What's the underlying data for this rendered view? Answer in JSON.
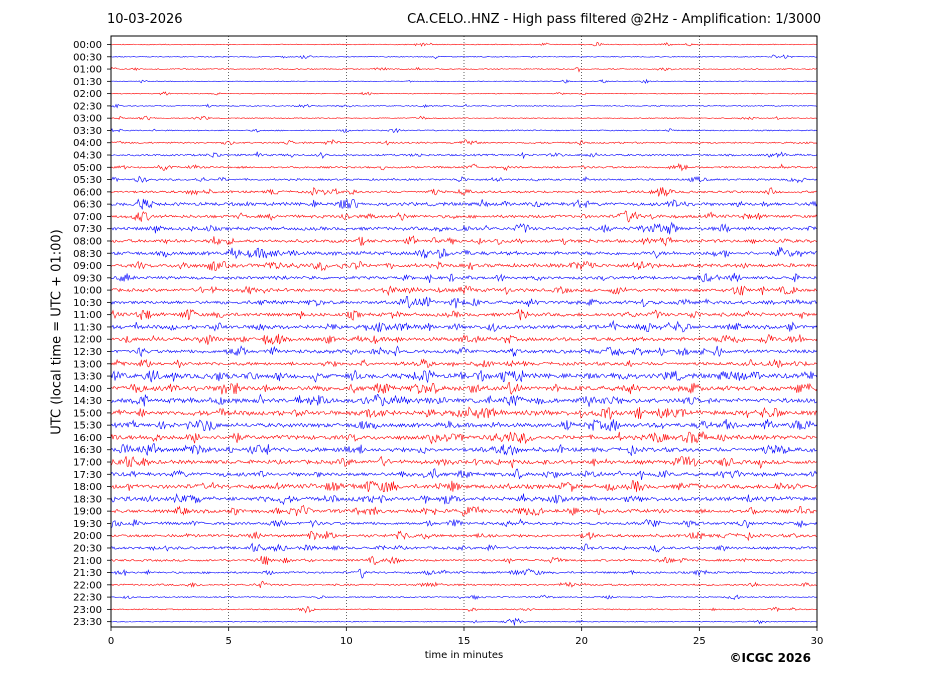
{
  "header": {
    "date": "10-03-2026",
    "title": "CA.CELO..HNZ - High pass filtered @2Hz - Amplification: 1/3000"
  },
  "footer": {
    "copyright": "©ICGC 2026"
  },
  "colors": {
    "trace_a": "#ff0000",
    "trace_b": "#0000ff",
    "axis": "#000000",
    "grid": "#000000"
  },
  "chart_data": {
    "type": "line",
    "xlabel": "time in minutes",
    "ylabel": "UTC (local time = UTC + 01:00)",
    "xlim": [
      0,
      30
    ],
    "xticks": [
      0,
      5,
      10,
      15,
      20,
      25,
      30
    ],
    "vertical_grid": "dotted",
    "row_minutes": 30,
    "rows": [
      {
        "label": "00:00",
        "color": "red",
        "activity": 0.05
      },
      {
        "label": "00:30",
        "color": "blue",
        "activity": 0.05
      },
      {
        "label": "01:00",
        "color": "red",
        "activity": 0.08
      },
      {
        "label": "01:30",
        "color": "blue",
        "activity": 0.04
      },
      {
        "label": "02:00",
        "color": "red",
        "activity": 0.04
      },
      {
        "label": "02:30",
        "color": "blue",
        "activity": 0.06
      },
      {
        "label": "03:00",
        "color": "red",
        "activity": 0.05
      },
      {
        "label": "03:30",
        "color": "blue",
        "activity": 0.1
      },
      {
        "label": "04:00",
        "color": "red",
        "activity": 0.18
      },
      {
        "label": "04:30",
        "color": "blue",
        "activity": 0.22
      },
      {
        "label": "05:00",
        "color": "red",
        "activity": 0.22
      },
      {
        "label": "05:30",
        "color": "blue",
        "activity": 0.22
      },
      {
        "label": "06:00",
        "color": "red",
        "activity": 0.3
      },
      {
        "label": "06:30",
        "color": "blue",
        "activity": 0.48
      },
      {
        "label": "07:00",
        "color": "red",
        "activity": 0.42
      },
      {
        "label": "07:30",
        "color": "blue",
        "activity": 0.48
      },
      {
        "label": "08:00",
        "color": "red",
        "activity": 0.45
      },
      {
        "label": "08:30",
        "color": "blue",
        "activity": 0.52
      },
      {
        "label": "09:00",
        "color": "red",
        "activity": 0.52
      },
      {
        "label": "09:30",
        "color": "blue",
        "activity": 0.4
      },
      {
        "label": "10:00",
        "color": "red",
        "activity": 0.45
      },
      {
        "label": "10:30",
        "color": "blue",
        "activity": 0.5
      },
      {
        "label": "11:00",
        "color": "red",
        "activity": 0.5
      },
      {
        "label": "11:30",
        "color": "blue",
        "activity": 0.55
      },
      {
        "label": "12:00",
        "color": "red",
        "activity": 0.55
      },
      {
        "label": "12:30",
        "color": "blue",
        "activity": 0.5
      },
      {
        "label": "13:00",
        "color": "red",
        "activity": 0.45
      },
      {
        "label": "13:30",
        "color": "blue",
        "activity": 0.72
      },
      {
        "label": "14:00",
        "color": "red",
        "activity": 0.72
      },
      {
        "label": "14:30",
        "color": "blue",
        "activity": 0.68
      },
      {
        "label": "15:00",
        "color": "red",
        "activity": 0.72
      },
      {
        "label": "15:30",
        "color": "blue",
        "activity": 0.62
      },
      {
        "label": "16:00",
        "color": "red",
        "activity": 0.65
      },
      {
        "label": "16:30",
        "color": "blue",
        "activity": 0.62
      },
      {
        "label": "17:00",
        "color": "red",
        "activity": 0.58
      },
      {
        "label": "17:30",
        "color": "blue",
        "activity": 0.55
      },
      {
        "label": "18:00",
        "color": "red",
        "activity": 0.62
      },
      {
        "label": "18:30",
        "color": "blue",
        "activity": 0.62
      },
      {
        "label": "19:00",
        "color": "red",
        "activity": 0.52
      },
      {
        "label": "19:30",
        "color": "blue",
        "activity": 0.4
      },
      {
        "label": "20:00",
        "color": "red",
        "activity": 0.4
      },
      {
        "label": "20:30",
        "color": "blue",
        "activity": 0.35
      },
      {
        "label": "21:00",
        "color": "red",
        "activity": 0.28
      },
      {
        "label": "21:30",
        "color": "blue",
        "activity": 0.25
      },
      {
        "label": "22:00",
        "color": "red",
        "activity": 0.2
      },
      {
        "label": "22:30",
        "color": "blue",
        "activity": 0.1
      },
      {
        "label": "23:00",
        "color": "red",
        "activity": 0.1
      },
      {
        "label": "23:30",
        "color": "blue",
        "activity": 0.05
      }
    ]
  }
}
